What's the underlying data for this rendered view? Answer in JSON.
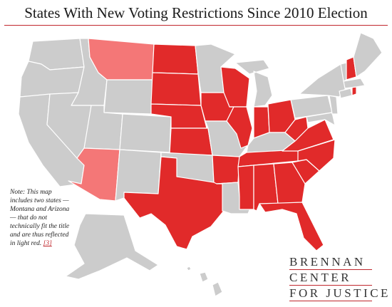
{
  "title": "States With New Voting Restrictions Since 2010 Election",
  "note": {
    "text": "Note: This map includes two states — Montana and Arizona — that do not technically fit the title and are thus reflected in light red. ",
    "link_text": "[3]"
  },
  "logo": {
    "line1": "BRENNAN",
    "line2": "CENTER",
    "line3": "FOR JUSTICE"
  },
  "colors": {
    "restricted": "#e12a2a",
    "partial": "#f47777",
    "none": "#cccccc",
    "accent": "#c0272d"
  },
  "states": {
    "restricted": [
      "ND",
      "SD",
      "NE",
      "KS",
      "TX",
      "IA",
      "WI",
      "IL",
      "IN",
      "OH",
      "WV",
      "VA",
      "NC",
      "SC",
      "TN",
      "AR",
      "MS",
      "AL",
      "GA",
      "FL",
      "NH",
      "RI"
    ],
    "partial": [
      "MT",
      "AZ"
    ]
  }
}
